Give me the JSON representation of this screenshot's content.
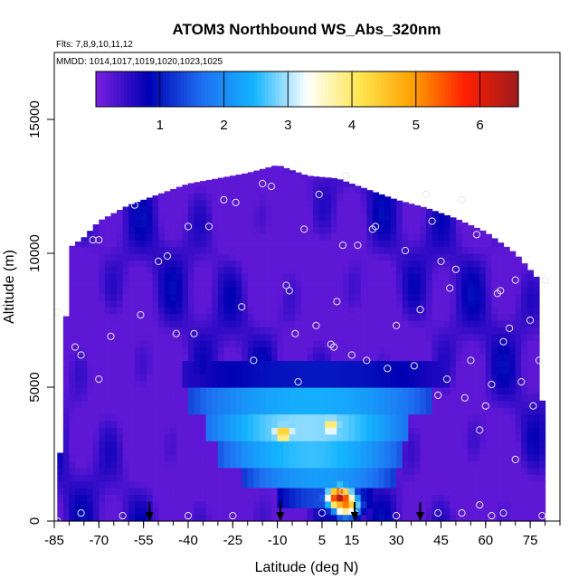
{
  "chart_data": {
    "type": "heatmap",
    "title": "ATOM3 Northbound WS_Abs_320nm",
    "flights_label": "Flts: 7,8,9,10,11,12",
    "dates_label": "MMDD: 1014,1017,1019,1020,1023,1025",
    "xlabel": "Latitude (deg N)",
    "ylabel": "Altitude (m)",
    "xlim": [
      -85,
      85
    ],
    "ylim": [
      0,
      17500
    ],
    "x_ticks": [
      -85,
      -70,
      -55,
      -40,
      -25,
      -10,
      5,
      15,
      30,
      45,
      60,
      75
    ],
    "y_ticks": [
      0,
      5000,
      10000,
      15000
    ],
    "colorbar": {
      "range": [
        0,
        6.6
      ],
      "ticks": [
        1,
        2,
        3,
        4,
        5,
        6
      ],
      "colors": [
        "#7b1fe0",
        "#0000b4",
        "#1e6ef0",
        "#14b4ff",
        "#ffffff",
        "#ffe650",
        "#ffa000",
        "#ff1e00",
        "#9b1c1c"
      ]
    },
    "background_value": 0.2,
    "profile": {
      "lat": [
        -84,
        -80,
        -75,
        -70,
        -60,
        -50,
        -40,
        -30,
        -20,
        -10,
        0,
        10,
        20,
        30,
        40,
        50,
        60,
        70,
        78,
        80
      ],
      "top_m": [
        0,
        10200,
        10600,
        11200,
        11800,
        12200,
        12600,
        12800,
        13000,
        13300,
        12900,
        12800,
        12400,
        12000,
        11700,
        11300,
        10800,
        10000,
        9000,
        0
      ]
    },
    "features": [
      {
        "kind": "band",
        "lat_min": -42,
        "lat_max": 48,
        "alt_min": 5000,
        "alt_max": 6000,
        "value": 1.0
      },
      {
        "kind": "band",
        "lat_min": -40,
        "lat_max": 42,
        "alt_min": 4000,
        "alt_max": 5000,
        "value": 2.4
      },
      {
        "kind": "band",
        "lat_min": -35,
        "lat_max": 35,
        "alt_min": 3000,
        "alt_max": 4000,
        "value": 2.9
      },
      {
        "kind": "band",
        "lat_min": -30,
        "lat_max": 32,
        "alt_min": 2000,
        "alt_max": 3000,
        "value": 2.6
      },
      {
        "kind": "band",
        "lat_min": -22,
        "lat_max": 30,
        "alt_min": 1200,
        "alt_max": 2000,
        "value": 2.2
      },
      {
        "kind": "band",
        "lat_min": -10,
        "lat_max": 22,
        "alt_min": 600,
        "alt_max": 1200,
        "value": 1.4
      },
      {
        "kind": "blob",
        "lat": -8,
        "alt": 3300,
        "value": 4.6
      },
      {
        "kind": "blob",
        "lat": 8,
        "alt": 3600,
        "value": 4.1
      },
      {
        "kind": "blob",
        "lat": 11,
        "alt": 900,
        "value": 6.4
      },
      {
        "kind": "blob",
        "lat": 13,
        "alt": 650,
        "value": 5.2
      }
    ],
    "sample_points": [
      [
        -84,
        7800
      ],
      [
        -78,
        6500
      ],
      [
        -76,
        6200
      ],
      [
        -70,
        5300
      ],
      [
        -66,
        6900
      ],
      [
        -72,
        10500
      ],
      [
        -70,
        10500
      ],
      [
        -58,
        11800
      ],
      [
        -56,
        7700
      ],
      [
        -50,
        9700
      ],
      [
        -47,
        9900
      ],
      [
        -44,
        7000
      ],
      [
        -40,
        11000
      ],
      [
        -38,
        7000
      ],
      [
        -33,
        11000
      ],
      [
        -28,
        12000
      ],
      [
        -24,
        11900
      ],
      [
        -22,
        8000
      ],
      [
        -18,
        6000
      ],
      [
        -15,
        12600
      ],
      [
        -12,
        12500
      ],
      [
        -7,
        8800
      ],
      [
        -6,
        8600
      ],
      [
        -4,
        7000
      ],
      [
        -3,
        5200
      ],
      [
        -1,
        10900
      ],
      [
        3,
        7300
      ],
      [
        4,
        12200
      ],
      [
        8,
        6600
      ],
      [
        9,
        6500
      ],
      [
        10,
        8200
      ],
      [
        12,
        10300
      ],
      [
        13,
        12900
      ],
      [
        15,
        6200
      ],
      [
        17,
        10300
      ],
      [
        20,
        6000
      ],
      [
        22,
        10900
      ],
      [
        23,
        11000
      ],
      [
        27,
        5700
      ],
      [
        30,
        7300
      ],
      [
        33,
        10100
      ],
      [
        36,
        5800
      ],
      [
        38,
        7900
      ],
      [
        40,
        12200
      ],
      [
        42,
        11200
      ],
      [
        44,
        4700
      ],
      [
        45,
        9700
      ],
      [
        47,
        5300
      ],
      [
        48,
        8700
      ],
      [
        50,
        9400
      ],
      [
        52,
        12000
      ],
      [
        53,
        4600
      ],
      [
        55,
        6000
      ],
      [
        57,
        10700
      ],
      [
        58,
        3400
      ],
      [
        60,
        4300
      ],
      [
        62,
        5100
      ],
      [
        64,
        8500
      ],
      [
        65,
        8600
      ],
      [
        66,
        6700
      ],
      [
        68,
        7200
      ],
      [
        70,
        9000
      ],
      [
        72,
        5200
      ],
      [
        75,
        7500
      ],
      [
        78,
        6000
      ],
      [
        80,
        9000
      ],
      [
        58,
        600
      ],
      [
        62,
        200
      ],
      [
        70,
        2300
      ],
      [
        76,
        4300
      ],
      [
        79,
        200
      ],
      [
        -84,
        0
      ],
      [
        -76,
        300
      ],
      [
        -62,
        200
      ],
      [
        -40,
        200
      ],
      [
        -25,
        200
      ],
      [
        5,
        300
      ],
      [
        12,
        1100
      ],
      [
        16,
        300
      ],
      [
        30,
        200
      ],
      [
        44,
        300
      ],
      [
        52,
        300
      ],
      [
        66,
        300
      ]
    ],
    "flight_markers_lat": [
      -53,
      -9,
      16,
      38
    ]
  }
}
